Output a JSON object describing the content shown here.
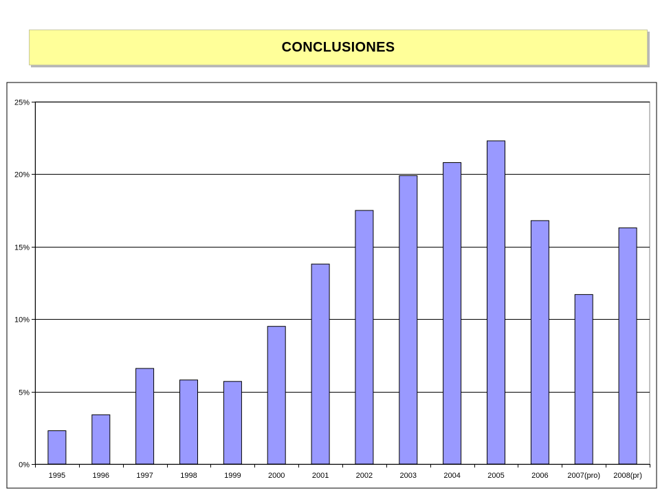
{
  "header": {
    "title": "CONCLUSIONES"
  },
  "colors": {
    "banner": "#ffff99",
    "bar": "#9999ff",
    "bar_border": "#000000",
    "grid": "#000000"
  },
  "chart_data": {
    "type": "bar",
    "title": "",
    "xlabel": "",
    "ylabel": "",
    "categories": [
      "1995",
      "1996",
      "1997",
      "1998",
      "1999",
      "2000",
      "2001",
      "2002",
      "2003",
      "2004",
      "2005",
      "2006",
      "2007(pro)",
      "2008(pr)"
    ],
    "values": [
      0.023,
      0.034,
      0.066,
      0.058,
      0.057,
      0.095,
      0.138,
      0.175,
      0.199,
      0.208,
      0.223,
      0.168,
      0.117,
      0.163
    ],
    "ylim": [
      0,
      0.25
    ],
    "yticks": [
      0,
      0.05,
      0.1,
      0.15,
      0.2,
      0.25
    ],
    "ytick_labels": [
      "0%",
      "5%",
      "10%",
      "15%",
      "20%",
      "25%"
    ],
    "grid": true,
    "legend": "none"
  }
}
